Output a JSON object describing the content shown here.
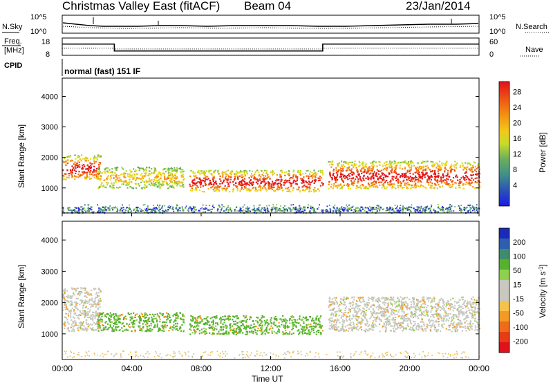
{
  "header": {
    "station": "Christmas Valley East (fitACF)",
    "beam": "Beam 04",
    "date": "23/Jan/2014"
  },
  "labels": {
    "nsky": "N.Sky",
    "nsearch": "N.Search",
    "freq_line1": "Freq.",
    "freq_line2": "[MHz]",
    "nave": "Nave",
    "cpid": "CPID",
    "cpid_value": "normal (fast) 151 IF",
    "x_axis": "Time UT",
    "y_axis": "Slant Range [km]",
    "power_colorbar": "Power [dB]",
    "velocity_colorbar": "Velocity [m s",
    "velocity_exponent": "-1",
    "velocity_colorbar_end": "]"
  },
  "noise_panel": {
    "left_ticks": [
      "10^5",
      "10^0"
    ],
    "right_ticks": [
      "10^5",
      "10^0"
    ]
  },
  "freq_panel": {
    "left_ticks": [
      "18",
      "8"
    ],
    "right_ticks": [
      "60",
      "0"
    ],
    "freq_steps": [
      {
        "start": 0.0,
        "end": 3.0,
        "value": 14.5
      },
      {
        "start": 3.0,
        "end": 15.0,
        "value": 10.5
      },
      {
        "start": 15.0,
        "end": 24.0,
        "value": 14.5
      }
    ],
    "nave_steps": [
      {
        "start": 0.0,
        "end": 3.0,
        "value": 25
      },
      {
        "start": 3.0,
        "end": 15.0,
        "value": 22
      },
      {
        "start": 15.0,
        "end": 24.0,
        "value": 25
      }
    ]
  },
  "power_colorbar": {
    "tick_labels": [
      "28",
      "24",
      "20",
      "16",
      "12",
      "8",
      "4"
    ],
    "colors": [
      "#2222d8",
      "#2a4fb8",
      "#3f8f8a",
      "#5aa86a",
      "#7fbf4a",
      "#b9d62d",
      "#e9e01e",
      "#f5b515",
      "#f38a13",
      "#ef5c14",
      "#e83417",
      "#e0121a"
    ]
  },
  "velocity_colorbar": {
    "tick_labels": [
      "200",
      "100",
      "50",
      "15",
      "-15",
      "-50",
      "-100",
      "-200"
    ],
    "colors": [
      "#1a2bb8",
      "#2d5fb0",
      "#3f8c6c",
      "#56b12e",
      "#8fd04c",
      "#c8c8c0",
      "#c8c8c0",
      "#f5c24a",
      "#f39a24",
      "#ef6b19",
      "#e63d16",
      "#e0121a"
    ]
  },
  "chart_data": {
    "type": "heatmap",
    "x_ticks": [
      "00:00",
      "04:00",
      "08:00",
      "12:00",
      "16:00",
      "20:00",
      "00:00"
    ],
    "x_range_hours": [
      0,
      24
    ],
    "y_ticks": [
      1000,
      2000,
      3000,
      4000
    ],
    "y_range_km": [
      180,
      4600
    ],
    "power_regions": [
      {
        "start": 0.0,
        "end": 2.2,
        "low": 1300,
        "high": 2100,
        "level": "high"
      },
      {
        "start": 2.0,
        "end": 7.0,
        "low": 1000,
        "high": 1700,
        "level": "medium"
      },
      {
        "start": 7.3,
        "end": 15.0,
        "low": 900,
        "high": 1600,
        "level": "high"
      },
      {
        "start": 15.3,
        "end": 24.0,
        "low": 1000,
        "high": 1900,
        "level": "high"
      },
      {
        "start": 0.0,
        "end": 24.0,
        "low": 200,
        "high": 400,
        "level": "low"
      }
    ],
    "velocity_regions": [
      {
        "start": 0.0,
        "end": 2.2,
        "low": 1100,
        "high": 2500,
        "band": "-15 to 15"
      },
      {
        "start": 2.0,
        "end": 7.0,
        "low": 1100,
        "high": 1700,
        "band": "15 to 50"
      },
      {
        "start": 7.3,
        "end": 15.0,
        "low": 1000,
        "high": 1600,
        "band": "15 to 50"
      },
      {
        "start": 15.3,
        "end": 24.0,
        "low": 1100,
        "high": 2200,
        "band": "-15 to 15"
      }
    ]
  }
}
